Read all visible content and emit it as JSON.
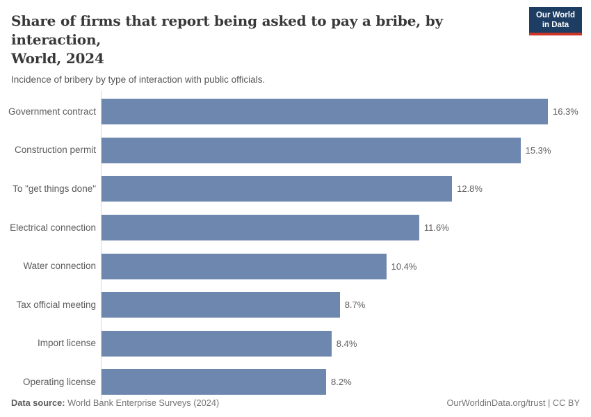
{
  "header": {
    "title_line1": "Share of firms that report being asked to pay a bribe, by interaction,",
    "title_line2": "World, 2024",
    "subtitle": "Incidence of bribery by type of interaction with public officials.",
    "logo": {
      "line1": "Our World",
      "line2": "in Data"
    }
  },
  "chart_data": {
    "type": "bar",
    "orientation": "horizontal",
    "title": "Share of firms that report being asked to pay a bribe, by interaction, World, 2024",
    "subtitle": "Incidence of bribery by type of interaction with public officials.",
    "categories": [
      "Government contract",
      "Construction permit",
      "To \"get things done\"",
      "Electrical connection",
      "Water connection",
      "Tax official meeting",
      "Import license",
      "Operating license"
    ],
    "values": [
      16.3,
      15.3,
      12.8,
      11.6,
      10.4,
      8.7,
      8.4,
      8.2
    ],
    "value_labels": [
      "16.3%",
      "15.3%",
      "12.8%",
      "11.6%",
      "10.4%",
      "8.7%",
      "8.4%",
      "8.2%"
    ],
    "xlabel": "",
    "ylabel": "",
    "xlim": [
      0,
      16.3
    ],
    "grid": false,
    "legend": "none",
    "bar_color": "#6e87af"
  },
  "footer": {
    "data_source_label": "Data source:",
    "data_source_value": " World Bank Enterprise Surveys (2024)",
    "link": "OurWorldinData.org/trust | CC BY"
  },
  "colors": {
    "bar": "#6e87af",
    "title": "#383838",
    "subtitle": "#555555",
    "labels": "#5b5b5b",
    "axis": "#d9d9d9",
    "logo_navy": "#1d3d63",
    "logo_red": "#cc3426",
    "background": "#ffffff"
  }
}
